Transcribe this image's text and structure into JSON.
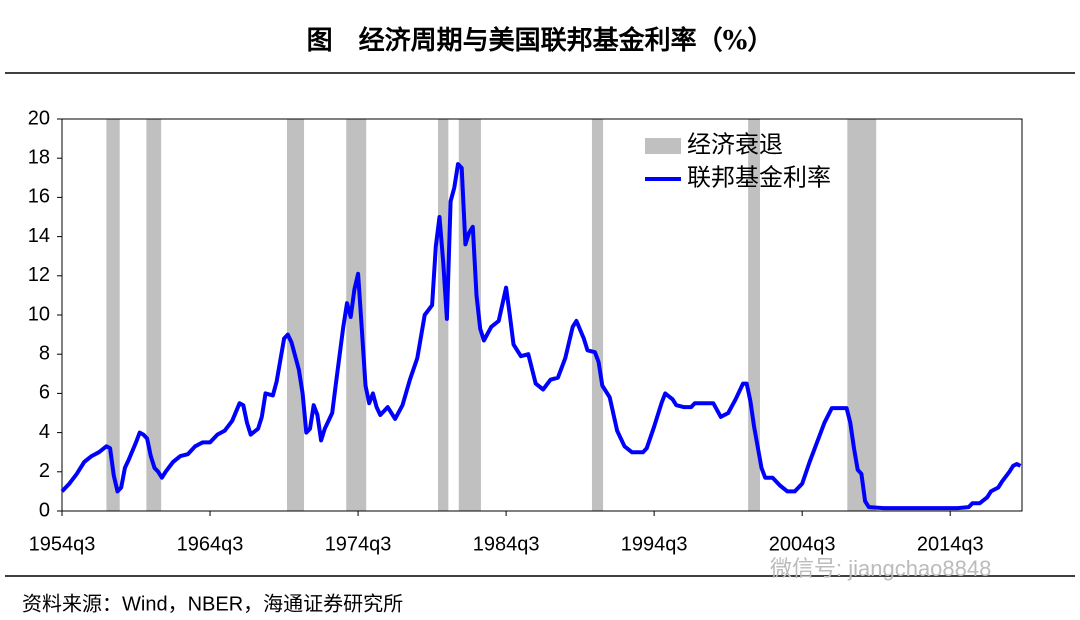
{
  "chart_data": {
    "type": "line",
    "title": "图　经济周期与美国联邦基金利率（%）",
    "source": "资料来源：Wind，NBER，海通证券研究所",
    "watermark": "微信号: jiangchao8848",
    "legend": "upper right",
    "xlim": [
      1954.5,
      2019.35
    ],
    "xticks": [
      {
        "value": 1954.5,
        "label": "1954q3"
      },
      {
        "value": 1964.5,
        "label": "1964q3"
      },
      {
        "value": 1974.5,
        "label": "1974q3"
      },
      {
        "value": 1984.5,
        "label": "1984q3"
      },
      {
        "value": 1994.5,
        "label": "1994q3"
      },
      {
        "value": 2004.5,
        "label": "2004q3"
      },
      {
        "value": 2014.5,
        "label": "2014q3"
      }
    ],
    "ylim": [
      0,
      20
    ],
    "yticks": [
      0,
      2,
      4,
      6,
      8,
      10,
      12,
      14,
      16,
      18,
      20
    ],
    "recessions": {
      "name": "经济衰退",
      "color": "#c0c0c0",
      "spans": [
        [
          1957.5,
          1958.4
        ],
        [
          1960.2,
          1961.2
        ],
        [
          1969.7,
          1970.85
        ],
        [
          1973.7,
          1975.05
        ],
        [
          1979.9,
          1980.6
        ],
        [
          1981.3,
          1982.8
        ],
        [
          1990.3,
          1991.05
        ],
        [
          2000.85,
          2001.65
        ],
        [
          2007.55,
          2009.5
        ]
      ]
    },
    "x": [
      1954.5,
      1955,
      1955.5,
      1956,
      1956.5,
      1957,
      1957.5,
      1957.75,
      1958,
      1958.25,
      1958.5,
      1958.75,
      1959,
      1959.5,
      1959.75,
      1960,
      1960.25,
      1960.5,
      1960.75,
      1961,
      1961.25,
      1961.5,
      1962,
      1962.5,
      1963,
      1963.5,
      1964,
      1964.5,
      1965,
      1965.5,
      1966,
      1966.5,
      1966.75,
      1967,
      1967.25,
      1967.75,
      1968,
      1968.25,
      1968.75,
      1969,
      1969.5,
      1969.75,
      1970,
      1970.5,
      1970.75,
      1971,
      1971.25,
      1971.5,
      1971.75,
      1972,
      1972.25,
      1972.75,
      1973,
      1973.5,
      1973.75,
      1974,
      1974.25,
      1974.5,
      1974.75,
      1975,
      1975.25,
      1975.5,
      1975.75,
      1976,
      1976.5,
      1977,
      1977.5,
      1978,
      1978.5,
      1979,
      1979.5,
      1979.75,
      1980,
      1980.25,
      1980.5,
      1980.75,
      1981,
      1981.25,
      1981.5,
      1981.75,
      1982,
      1982.25,
      1982.5,
      1982.75,
      1983,
      1983.5,
      1984,
      1984.5,
      1984.75,
      1985,
      1985.5,
      1986,
      1986.5,
      1987,
      1987.5,
      1988,
      1988.5,
      1989,
      1989.25,
      1989.75,
      1990,
      1990.5,
      1990.75,
      1991,
      1991.5,
      1992,
      1992.5,
      1993,
      1993.75,
      1994,
      1994.5,
      1995,
      1995.25,
      1995.75,
      1996,
      1996.5,
      1997,
      1997.25,
      1998,
      1998.5,
      1999,
      1999.5,
      2000,
      2000.5,
      2000.75,
      2001,
      2001.25,
      2001.75,
      2002,
      2002.5,
      2003,
      2003.5,
      2004,
      2004.5,
      2005,
      2005.5,
      2006,
      2006.5,
      2007,
      2007.5,
      2007.75,
      2008,
      2008.25,
      2008.5,
      2008.75,
      2009,
      2010,
      2012,
      2015,
      2015.75,
      2016,
      2016.5,
      2017,
      2017.25,
      2017.75,
      2018,
      2018.5,
      2018.75,
      2019,
      2019.25
    ],
    "series": [
      {
        "name": "联邦基金利率",
        "color": "#0000ff",
        "values": [
          1.0,
          1.4,
          1.9,
          2.5,
          2.8,
          3.0,
          3.3,
          3.2,
          1.8,
          1.0,
          1.2,
          2.2,
          2.6,
          3.5,
          4.0,
          3.9,
          3.7,
          2.8,
          2.2,
          2.0,
          1.7,
          2.0,
          2.5,
          2.8,
          2.9,
          3.3,
          3.5,
          3.5,
          3.9,
          4.1,
          4.6,
          5.5,
          5.4,
          4.5,
          3.9,
          4.2,
          4.8,
          6.0,
          5.9,
          6.6,
          8.8,
          9.0,
          8.6,
          7.2,
          6.0,
          4.0,
          4.2,
          5.4,
          4.9,
          3.6,
          4.2,
          5.0,
          6.5,
          9.4,
          10.6,
          9.9,
          11.3,
          12.1,
          9.3,
          6.4,
          5.5,
          6.0,
          5.3,
          4.9,
          5.3,
          4.7,
          5.4,
          6.7,
          7.8,
          10.0,
          10.5,
          13.5,
          15.0,
          12.7,
          9.8,
          15.8,
          16.5,
          17.7,
          17.5,
          13.6,
          14.2,
          14.5,
          11.0,
          9.3,
          8.7,
          9.4,
          9.7,
          11.4,
          10.0,
          8.5,
          7.9,
          8.0,
          6.5,
          6.2,
          6.7,
          6.8,
          7.8,
          9.4,
          9.7,
          8.8,
          8.2,
          8.1,
          7.6,
          6.4,
          5.8,
          4.1,
          3.3,
          3.0,
          3.0,
          3.2,
          4.3,
          5.5,
          6.0,
          5.7,
          5.4,
          5.3,
          5.3,
          5.5,
          5.5,
          5.5,
          4.8,
          5.0,
          5.7,
          6.5,
          6.5,
          5.6,
          4.3,
          2.2,
          1.7,
          1.7,
          1.3,
          1.0,
          1.0,
          1.4,
          2.5,
          3.5,
          4.5,
          5.25,
          5.25,
          5.25,
          4.5,
          3.2,
          2.1,
          1.9,
          0.5,
          0.2,
          0.15,
          0.15,
          0.15,
          0.2,
          0.4,
          0.4,
          0.7,
          1.0,
          1.2,
          1.5,
          2.0,
          2.3,
          2.4,
          2.3
        ]
      }
    ]
  }
}
